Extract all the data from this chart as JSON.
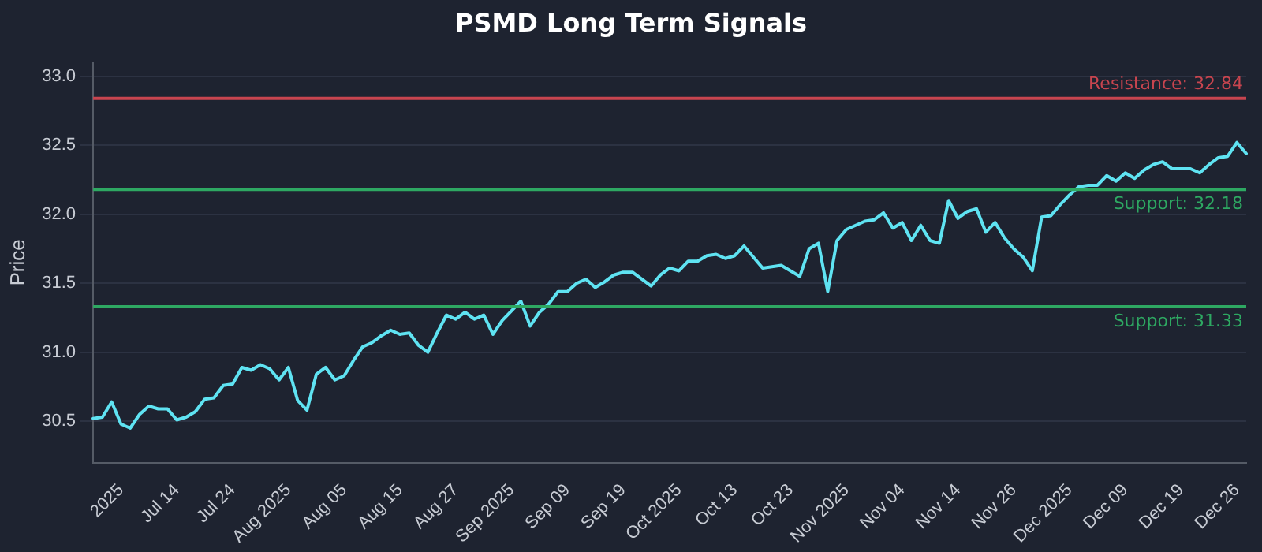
{
  "chart_data": {
    "type": "line",
    "title": "PSMD Long Term Signals",
    "ylabel": "Price",
    "categories": [
      null,
      null,
      null,
      "2025",
      null,
      null,
      null,
      null,
      null,
      "Jul 14",
      null,
      null,
      null,
      null,
      null,
      "Jul 24",
      null,
      null,
      null,
      null,
      null,
      "Aug 2025",
      null,
      null,
      null,
      null,
      null,
      "Aug 05",
      null,
      null,
      null,
      null,
      null,
      "Aug 15",
      null,
      null,
      null,
      null,
      null,
      "Aug 27",
      null,
      null,
      null,
      null,
      null,
      "Sep 2025",
      null,
      null,
      null,
      null,
      null,
      "Sep 09",
      null,
      null,
      null,
      null,
      null,
      "Sep 19",
      null,
      null,
      null,
      null,
      null,
      "Oct 2025",
      null,
      null,
      null,
      null,
      null,
      "Oct 13",
      null,
      null,
      null,
      null,
      null,
      "Oct 23",
      null,
      null,
      null,
      null,
      null,
      "Nov 2025",
      null,
      null,
      null,
      null,
      null,
      "Nov 04",
      null,
      null,
      null,
      null,
      null,
      "Nov 14",
      null,
      null,
      null,
      null,
      null,
      "Nov 26",
      null,
      null,
      null,
      null,
      null,
      "Dec 2025",
      null,
      null,
      null,
      null,
      null,
      "Dec 09",
      null,
      null,
      null,
      null,
      null,
      "Dec 19",
      null,
      null,
      null,
      null,
      null,
      "Dec 26",
      null
    ],
    "series": [
      {
        "color": "#5fe3f2",
        "values": [
          30.52,
          30.53,
          30.64,
          30.48,
          30.45,
          30.55,
          30.61,
          30.59,
          30.59,
          30.51,
          30.53,
          30.57,
          30.66,
          30.67,
          30.76,
          30.77,
          30.89,
          30.87,
          30.91,
          30.88,
          30.8,
          30.89,
          30.65,
          30.58,
          30.84,
          30.89,
          30.8,
          30.83,
          30.94,
          31.04,
          31.07,
          31.12,
          31.16,
          31.13,
          31.14,
          31.05,
          31.0,
          31.14,
          31.27,
          31.24,
          31.29,
          31.24,
          31.27,
          31.13,
          31.23,
          31.3,
          31.37,
          31.19,
          31.29,
          31.35,
          31.44,
          31.44,
          31.5,
          31.53,
          31.47,
          31.51,
          31.56,
          31.58,
          31.58,
          31.53,
          31.48,
          31.56,
          31.61,
          31.59,
          31.66,
          31.66,
          31.7,
          31.71,
          31.68,
          31.7,
          31.77,
          31.69,
          31.61,
          31.62,
          31.63,
          31.59,
          31.55,
          31.75,
          31.79,
          31.44,
          31.81,
          31.89,
          31.92,
          31.95,
          31.96,
          32.01,
          31.9,
          31.94,
          31.81,
          31.92,
          31.81,
          31.79,
          32.1,
          31.97,
          32.02,
          32.04,
          31.87,
          31.94,
          31.83,
          31.75,
          31.69,
          31.59,
          31.98,
          31.99,
          32.07,
          32.14,
          32.2,
          32.21,
          32.21,
          32.28,
          32.24,
          32.3,
          32.26,
          32.32,
          32.36,
          32.38,
          32.33,
          32.33,
          32.33,
          32.3,
          32.36,
          32.41,
          32.42,
          32.52,
          32.44
        ]
      }
    ],
    "ylim": [
      30.2,
      33.1
    ],
    "yticks": [
      {
        "value": 30.5,
        "label": "30.5"
      },
      {
        "value": 31,
        "label": "31.0"
      },
      {
        "value": 31.5,
        "label": "31.5"
      },
      {
        "value": 32,
        "label": "32.0"
      },
      {
        "value": 32.5,
        "label": "32.5"
      },
      {
        "value": 33,
        "label": "33.0"
      }
    ],
    "ref_lines": [
      {
        "axis": "y",
        "value": 32.84,
        "label": "Resistance: 32.84",
        "color": "#c8454f"
      },
      {
        "axis": "y",
        "value": 32.18,
        "label": "Support: 32.18",
        "color": "#2ea862"
      },
      {
        "axis": "y",
        "value": 31.33,
        "label": "Support: 31.33",
        "color": "#2ea862"
      }
    ],
    "grid": "y",
    "legend": false,
    "marker": "none",
    "line_style": "solid"
  }
}
